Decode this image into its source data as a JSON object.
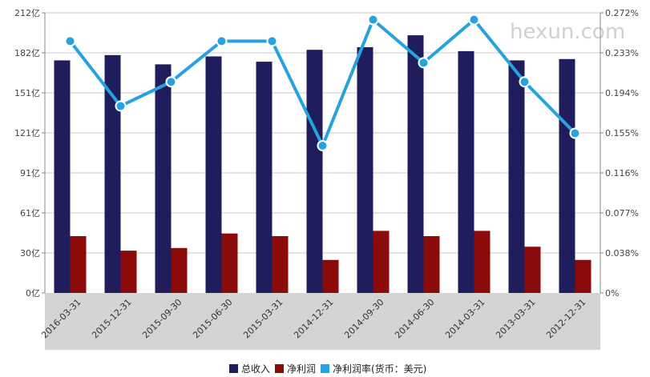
{
  "watermark": "hexun.com",
  "colors": {
    "revenue": "#1f1d5c",
    "profit": "#8b0a0a",
    "margin": "#27a2df",
    "xband": "#d4d4d4",
    "grid": "#c8c8c8"
  },
  "chart_data": {
    "type": "bar",
    "categories": [
      "2016-03-31",
      "2015-12-31",
      "2015-09-30",
      "2015-06-30",
      "2015-03-31",
      "2014-12-31",
      "2014-09-30",
      "2014-06-30",
      "2014-03-31",
      "2013-03-31",
      "2012-12-31"
    ],
    "series": [
      {
        "name": "总收入",
        "type": "bar",
        "axis": "left",
        "color": "#1f1d5c",
        "values": [
          176,
          180,
          173,
          179,
          175,
          184,
          186,
          195,
          183,
          176,
          177
        ]
      },
      {
        "name": "净利润",
        "type": "bar",
        "axis": "left",
        "color": "#8b0a0a",
        "values": [
          43,
          32,
          34,
          45,
          43,
          25,
          47,
          43,
          47,
          35,
          25
        ]
      },
      {
        "name": "净利润率(货币：美元)",
        "type": "line",
        "axis": "right",
        "color": "#27a2df",
        "values": [
          0.2445,
          0.1815,
          0.205,
          0.2445,
          0.2445,
          0.143,
          0.2653,
          0.2235,
          0.2653,
          0.205,
          0.155
        ]
      }
    ],
    "left_axis": {
      "ticks": [
        "0亿",
        "30亿",
        "61亿",
        "91亿",
        "121亿",
        "151亿",
        "182亿",
        "212亿"
      ],
      "range": [
        0,
        212
      ]
    },
    "right_axis": {
      "ticks": [
        "0%",
        "0.038%",
        "0.077%",
        "0.116%",
        "0.155%",
        "0.194%",
        "0.233%",
        "0.272%"
      ],
      "range": [
        0,
        0.272
      ]
    },
    "grid": true,
    "legend_position": "bottom-center",
    "legend": [
      {
        "label": "总收入",
        "color": "#1f1d5c"
      },
      {
        "label": "净利润",
        "color": "#8b0a0a"
      },
      {
        "label": "净利润率(货币：美元)",
        "color": "#27a2df"
      }
    ]
  }
}
